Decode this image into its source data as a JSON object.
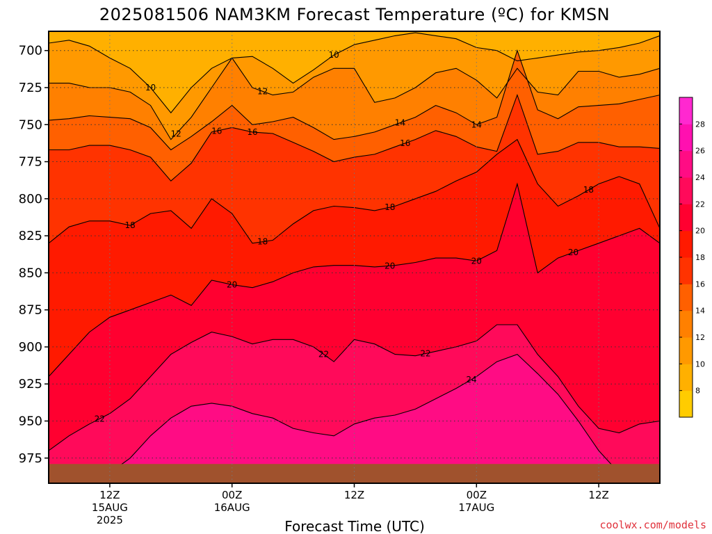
{
  "chart_data": {
    "type": "heatmap",
    "title": "2025081506 NAM3KM Forecast Temperature (ºC) for KMSN",
    "xlabel": "Forecast Time (UTC)",
    "ylabel": "",
    "y_axis": {
      "ticks": [
        700,
        725,
        750,
        775,
        800,
        825,
        850,
        875,
        900,
        925,
        950,
        975
      ],
      "ylim": [
        687,
        992
      ],
      "inverted": true
    },
    "x_axis": {
      "xlim_hours_from_run": [
        0,
        60
      ],
      "ticks": [
        {
          "hours": 6,
          "line1": "12Z",
          "line2": "15AUG",
          "line3": "2025"
        },
        {
          "hours": 18,
          "line1": "00Z",
          "line2": "16AUG",
          "line3": ""
        },
        {
          "hours": 30,
          "line1": "12Z",
          "line2": "",
          "line3": ""
        },
        {
          "hours": 42,
          "line1": "00Z",
          "line2": "17AUG",
          "line3": ""
        },
        {
          "hours": 54,
          "line1": "12Z",
          "line2": "",
          "line3": ""
        }
      ]
    },
    "grid": true,
    "contour_interval": 2,
    "colorbar": {
      "labels": [
        8,
        10,
        12,
        14,
        16,
        18,
        20,
        22,
        24,
        26,
        28
      ],
      "colors": [
        "#ffcc00",
        "#ffb000",
        "#ff9900",
        "#ff8000",
        "#ff6000",
        "#ff3300",
        "#ff1a00",
        "#ff0030",
        "#ff0a5a",
        "#ff0c84",
        "#ff10b0",
        "#ff28d0"
      ],
      "min": 6,
      "max": 30
    },
    "isotherms": [
      {
        "temp": 10,
        "pressure": [
          695,
          693,
          697,
          705,
          712,
          725,
          742,
          725,
          712,
          705,
          704,
          712,
          722,
          713,
          703,
          696,
          693,
          690,
          688,
          690,
          692,
          698,
          700,
          707,
          705,
          703,
          701,
          700,
          698,
          695,
          690
        ],
        "labels": [
          {
            "hour": 10,
            "text": "10"
          },
          {
            "hour": 28,
            "text": "10"
          }
        ]
      },
      {
        "temp": 12,
        "pressure": [
          722,
          722,
          725,
          725,
          728,
          737,
          760,
          745,
          725,
          705,
          725,
          730,
          728,
          718,
          712,
          712,
          735,
          732,
          725,
          715,
          712,
          720,
          732,
          712,
          728,
          730,
          714,
          714,
          718,
          716,
          712
        ],
        "labels": [
          {
            "hour": 12.5,
            "text": "12"
          },
          {
            "hour": 21,
            "text": "12"
          }
        ]
      },
      {
        "temp": 14,
        "pressure": [
          747,
          746,
          744,
          745,
          746,
          752,
          767,
          758,
          748,
          737,
          750,
          748,
          745,
          752,
          760,
          758,
          755,
          750,
          745,
          737,
          742,
          750,
          745,
          700,
          740,
          746,
          738,
          737,
          736,
          733,
          730
        ],
        "labels": [
          {
            "hour": 34.5,
            "text": "14"
          },
          {
            "hour": 42,
            "text": "14"
          }
        ]
      },
      {
        "temp": 16,
        "pressure": [
          767,
          767,
          764,
          764,
          767,
          772,
          788,
          776,
          755,
          752,
          755,
          756,
          762,
          768,
          775,
          772,
          770,
          765,
          760,
          754,
          758,
          765,
          768,
          730,
          770,
          768,
          762,
          762,
          765,
          765,
          766
        ],
        "labels": [
          {
            "hour": 16.5,
            "text": "16"
          },
          {
            "hour": 20,
            "text": "16"
          },
          {
            "hour": 35,
            "text": "16"
          }
        ]
      },
      {
        "temp": 18,
        "pressure": [
          830,
          819,
          815,
          815,
          818,
          810,
          808,
          820,
          800,
          810,
          830,
          828,
          817,
          808,
          805,
          806,
          808,
          805,
          800,
          795,
          788,
          782,
          770,
          760,
          790,
          805,
          798,
          790,
          785,
          790,
          820
        ],
        "labels": [
          {
            "hour": 8,
            "text": "18"
          },
          {
            "hour": 21,
            "text": "18"
          },
          {
            "hour": 33.5,
            "text": "18"
          },
          {
            "hour": 53,
            "text": "18"
          }
        ]
      },
      {
        "temp": 20,
        "pressure": [
          920,
          905,
          890,
          880,
          875,
          870,
          865,
          872,
          855,
          858,
          860,
          856,
          850,
          846,
          845,
          845,
          846,
          845,
          843,
          840,
          840,
          842,
          835,
          790,
          850,
          840,
          835,
          830,
          825,
          820,
          830
        ],
        "labels": [
          {
            "hour": 18,
            "text": "20"
          },
          {
            "hour": 33.5,
            "text": "20"
          },
          {
            "hour": 42,
            "text": "20"
          },
          {
            "hour": 51.5,
            "text": "20"
          }
        ]
      },
      {
        "temp": 22,
        "pressure": [
          970,
          960,
          952,
          945,
          935,
          920,
          905,
          897,
          890,
          893,
          898,
          895,
          895,
          900,
          910,
          895,
          898,
          905,
          906,
          903,
          900,
          896,
          885,
          885,
          905,
          920,
          940,
          955,
          958,
          952,
          950
        ],
        "labels": [
          {
            "hour": 5,
            "text": "22"
          },
          {
            "hour": 27,
            "text": "22"
          },
          {
            "hour": 37,
            "text": "22"
          }
        ]
      },
      {
        "temp": 24,
        "pressure": [
          992,
          992,
          990,
          985,
          975,
          960,
          948,
          940,
          938,
          940,
          945,
          948,
          955,
          958,
          960,
          952,
          948,
          946,
          942,
          935,
          928,
          920,
          910,
          905,
          918,
          932,
          950,
          970,
          985,
          992,
          992
        ],
        "labels": [
          {
            "hour": 41.5,
            "text": "24"
          }
        ]
      }
    ],
    "ground": {
      "pressure_top": 979,
      "color": "#a0522d"
    }
  },
  "credit": "coolwx.com/models"
}
